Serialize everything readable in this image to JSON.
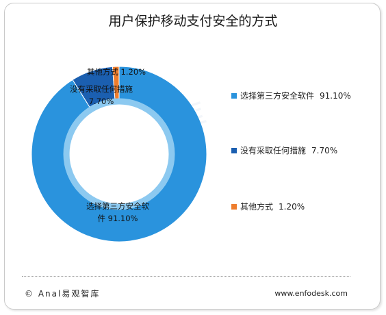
{
  "chart_data": {
    "type": "pie",
    "title": "用户保护移动支付安全的方式",
    "categories": [
      "选择第三方安全软件",
      "没有采取任何措施",
      "其他方式"
    ],
    "values": [
      91.1,
      7.7,
      1.2
    ],
    "value_labels": [
      "91.10%",
      "7.70%",
      "1.20%"
    ],
    "colors": [
      "#2a93dd",
      "#1b5fb0",
      "#ee7d2d"
    ],
    "donut": true,
    "legend_position": "right",
    "slice_labels": [
      {
        "lines": [
          "选择第三方安全软",
          "件  91.10%"
        ]
      },
      {
        "lines": [
          "没有采取任何措施",
          "7.70%"
        ]
      },
      {
        "lines": [
          "其他方式  1.20%"
        ]
      }
    ]
  },
  "watermark": "易观智库",
  "footer": {
    "left": "© Anal易观智库",
    "right": "www.enfodesk.com"
  }
}
